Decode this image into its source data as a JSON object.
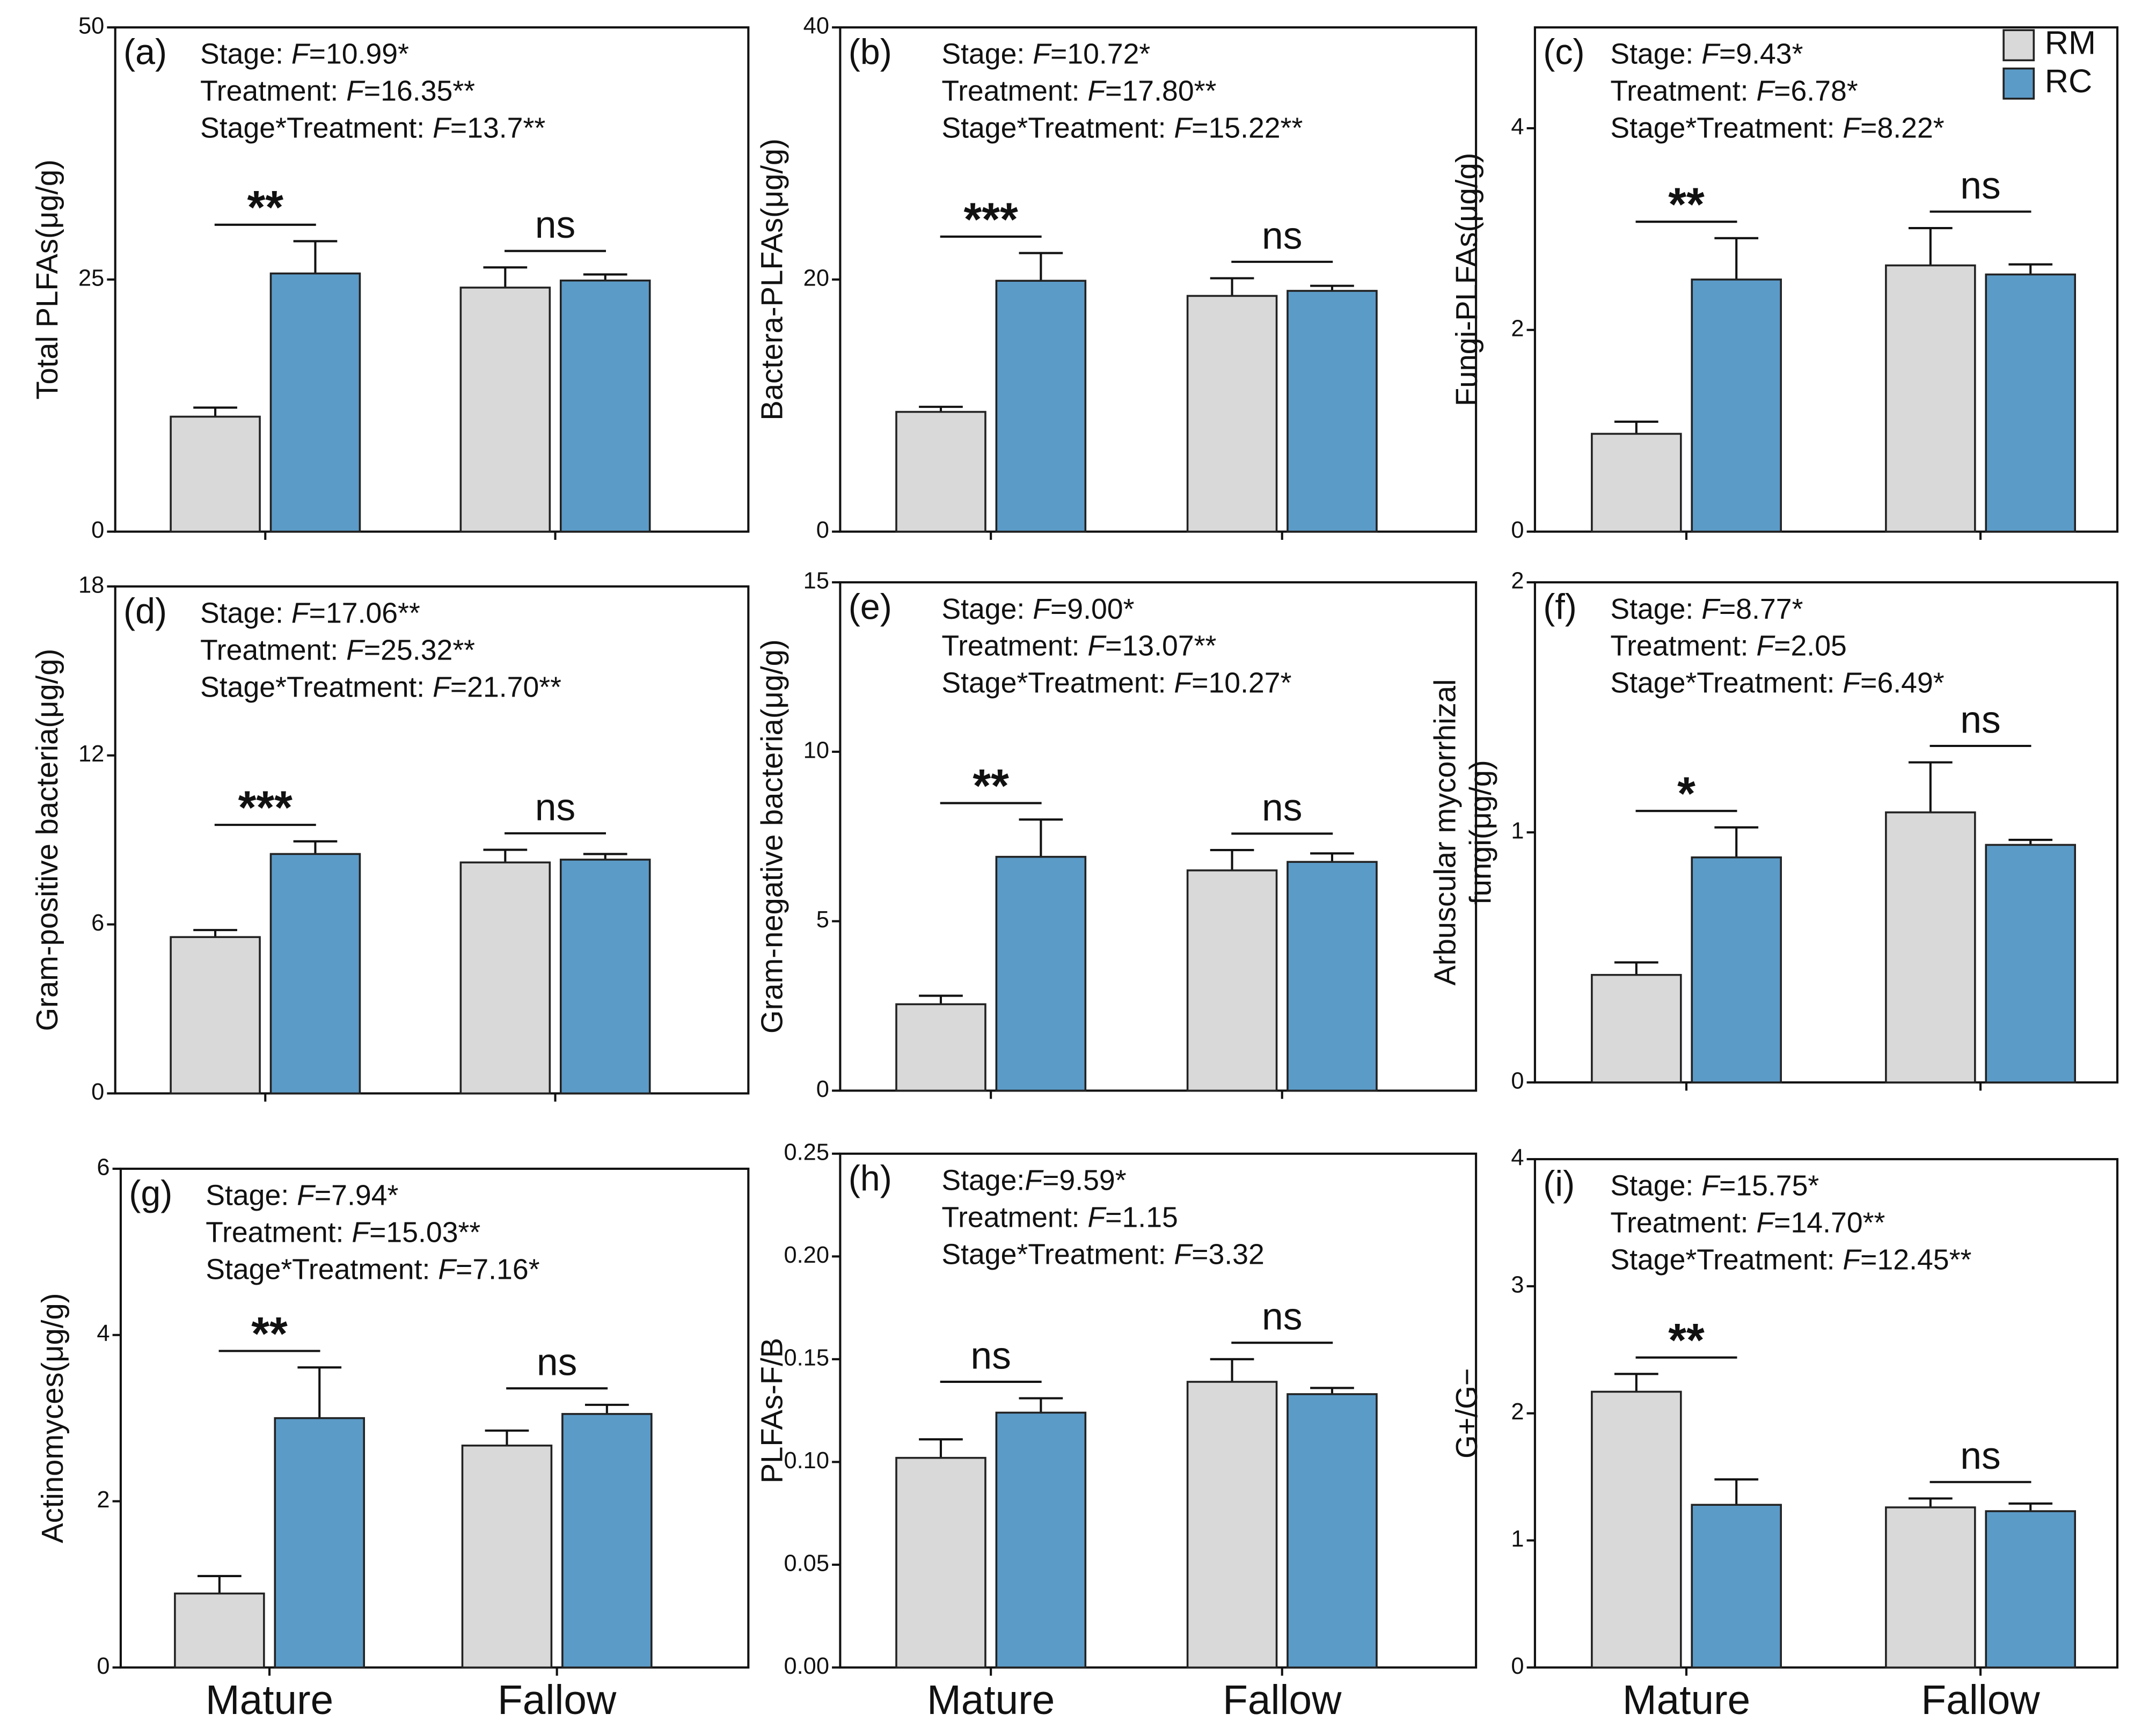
{
  "chart_data": [
    {
      "type": "bar",
      "panel_label": "(a)",
      "ylabel": "Total PLFAs(μg/g)",
      "stats": [
        "Stage: F=10.99*",
        "Treatment: F=16.35**",
        "Stage*Treatment: F=13.7**"
      ],
      "categories": [
        null,
        null
      ],
      "series": [
        {
          "color": "#d9d9d9",
          "values": [
            11.4,
            24.2
          ],
          "errors": [
            0.9,
            2.0
          ]
        },
        {
          "color": "#5b9bc8",
          "values": [
            25.6,
            24.9
          ],
          "errors": [
            3.2,
            0.6
          ]
        }
      ],
      "significance": [
        "**",
        "ns"
      ],
      "ylim": [
        0,
        50
      ],
      "yticks": [
        0,
        25,
        50
      ]
    },
    {
      "type": "bar",
      "panel_label": "(b)",
      "ylabel": "Bactera-PLFAs(μg/g)",
      "stats": [
        "Stage: F=10.72*",
        "Treatment: F=17.80**",
        "Stage*Treatment: F=15.22**"
      ],
      "categories": [
        null,
        null
      ],
      "series": [
        {
          "color": "#d9d9d9",
          "values": [
            9.5,
            18.7
          ],
          "errors": [
            0.4,
            1.4
          ]
        },
        {
          "color": "#5b9bc8",
          "values": [
            19.9,
            19.1
          ],
          "errors": [
            2.2,
            0.4
          ]
        }
      ],
      "significance": [
        "***",
        "ns"
      ],
      "ylim": [
        0,
        40
      ],
      "yticks": [
        0,
        20,
        40
      ]
    },
    {
      "type": "bar",
      "panel_label": "(c)",
      "ylabel": "Fungi-PLFAs(μg/g)",
      "stats": [
        "Stage:  F=9.43*",
        "Treatment:  F=6.78*",
        "Stage*Treatment:  F=8.22*"
      ],
      "categories": [
        null,
        null
      ],
      "series": [
        {
          "name": "RM",
          "color": "#d9d9d9",
          "values": [
            0.97,
            2.64
          ],
          "errors": [
            0.12,
            0.37
          ]
        },
        {
          "name": "RC",
          "color": "#5b9bc8",
          "values": [
            2.5,
            2.55
          ],
          "errors": [
            0.41,
            0.1
          ]
        }
      ],
      "significance": [
        "**",
        "ns"
      ],
      "ylim": [
        0,
        5
      ],
      "yticks": [
        0,
        2,
        4
      ]
    },
    {
      "type": "bar",
      "panel_label": "(d)",
      "ylabel": "Gram-positive bacteria(μg/g)",
      "stats": [
        "Stage: F=17.06**",
        "Treatment: F=25.32**",
        "Stage*Treatment: F=21.70**"
      ],
      "categories": [
        null,
        null
      ],
      "series": [
        {
          "color": "#d9d9d9",
          "values": [
            5.55,
            8.2
          ],
          "errors": [
            0.25,
            0.45
          ]
        },
        {
          "color": "#5b9bc8",
          "values": [
            8.5,
            8.3
          ],
          "errors": [
            0.45,
            0.2
          ]
        }
      ],
      "significance": [
        "***",
        "ns"
      ],
      "ylim": [
        0,
        18
      ],
      "yticks": [
        0,
        6,
        12,
        18
      ]
    },
    {
      "type": "bar",
      "panel_label": "(e)",
      "ylabel": "Gram-negative bacteria(μg/g)",
      "stats": [
        "Stage: F=9.00*",
        "Treatment: F=13.07**",
        "Stage*Treatment: F=10.27*"
      ],
      "categories": [
        null,
        null
      ],
      "series": [
        {
          "color": "#d9d9d9",
          "values": [
            2.55,
            6.5
          ],
          "errors": [
            0.25,
            0.6
          ]
        },
        {
          "color": "#5b9bc8",
          "values": [
            6.9,
            6.75
          ],
          "errors": [
            1.1,
            0.25
          ]
        }
      ],
      "significance": [
        "**",
        "ns"
      ],
      "ylim": [
        0,
        15
      ],
      "yticks": [
        0,
        5,
        10,
        15
      ]
    },
    {
      "type": "bar",
      "panel_label": "(f)",
      "ylabel": [
        "Arbuscular mycorrhizal",
        "fungi(μg/g)"
      ],
      "stats": [
        "Stage: F=8.77*",
        "Treatment: F=2.05",
        "Stage*Treatment: F=6.49*"
      ],
      "categories": [
        null,
        null
      ],
      "series": [
        {
          "color": "#d9d9d9",
          "values": [
            0.43,
            1.08
          ],
          "errors": [
            0.05,
            0.2
          ]
        },
        {
          "color": "#5b9bc8",
          "values": [
            0.9,
            0.95
          ],
          "errors": [
            0.12,
            0.02
          ]
        }
      ],
      "significance": [
        "*",
        "ns"
      ],
      "ylim": [
        0,
        2
      ],
      "yticks": [
        0,
        1,
        2
      ]
    },
    {
      "type": "bar",
      "panel_label": "(g)",
      "ylabel": "Actinomyces(μg/g)",
      "stats": [
        "Stage: F=7.94*",
        "Treatment: F=15.03**",
        "Stage*Treatment: F=7.16*"
      ],
      "categories": [
        "Mature",
        "Fallow"
      ],
      "series": [
        {
          "color": "#d9d9d9",
          "values": [
            0.89,
            2.67
          ],
          "errors": [
            0.21,
            0.18
          ]
        },
        {
          "color": "#5b9bc8",
          "values": [
            3.0,
            3.05
          ],
          "errors": [
            0.61,
            0.11
          ]
        }
      ],
      "significance": [
        "**",
        "ns"
      ],
      "ylim": [
        0,
        6
      ],
      "yticks": [
        0,
        2,
        4,
        6
      ]
    },
    {
      "type": "bar",
      "panel_label": "(h)",
      "ylabel": "PLFAs-F/B",
      "stats": [
        "Stage:F=9.59*",
        "Treatment: F=1.15",
        "Stage*Treatment: F=3.32"
      ],
      "categories": [
        "Mature",
        "Fallow"
      ],
      "series": [
        {
          "color": "#d9d9d9",
          "values": [
            0.102,
            0.139
          ],
          "errors": [
            0.009,
            0.011
          ]
        },
        {
          "color": "#5b9bc8",
          "values": [
            0.124,
            0.133
          ],
          "errors": [
            0.007,
            0.003
          ]
        }
      ],
      "significance": [
        "ns",
        "ns"
      ],
      "ylim": [
        0,
        0.25
      ],
      "yticks": [
        {
          "value": 0,
          "label": "0.00"
        },
        0.05,
        {
          "value": 0.1,
          "label": "0.10"
        },
        0.15,
        {
          "value": 0.2,
          "label": "0.20"
        },
        0.25
      ]
    },
    {
      "type": "bar",
      "panel_label": "(i)",
      "ylabel": "G+/G−",
      "stats": [
        "Stage: F=15.75*",
        "Treatment: F=14.70**",
        "Stage*Treatment: F=12.45**"
      ],
      "categories": [
        "Mature",
        "Fallow"
      ],
      "series": [
        {
          "color": "#d9d9d9",
          "values": [
            2.17,
            1.26
          ],
          "errors": [
            0.14,
            0.07
          ]
        },
        {
          "color": "#5b9bc8",
          "values": [
            1.28,
            1.23
          ],
          "errors": [
            0.2,
            0.06
          ]
        }
      ],
      "significance": [
        "**",
        "ns"
      ],
      "ylim": [
        0,
        4
      ],
      "yticks": [
        0,
        1,
        2,
        3,
        4
      ]
    }
  ]
}
